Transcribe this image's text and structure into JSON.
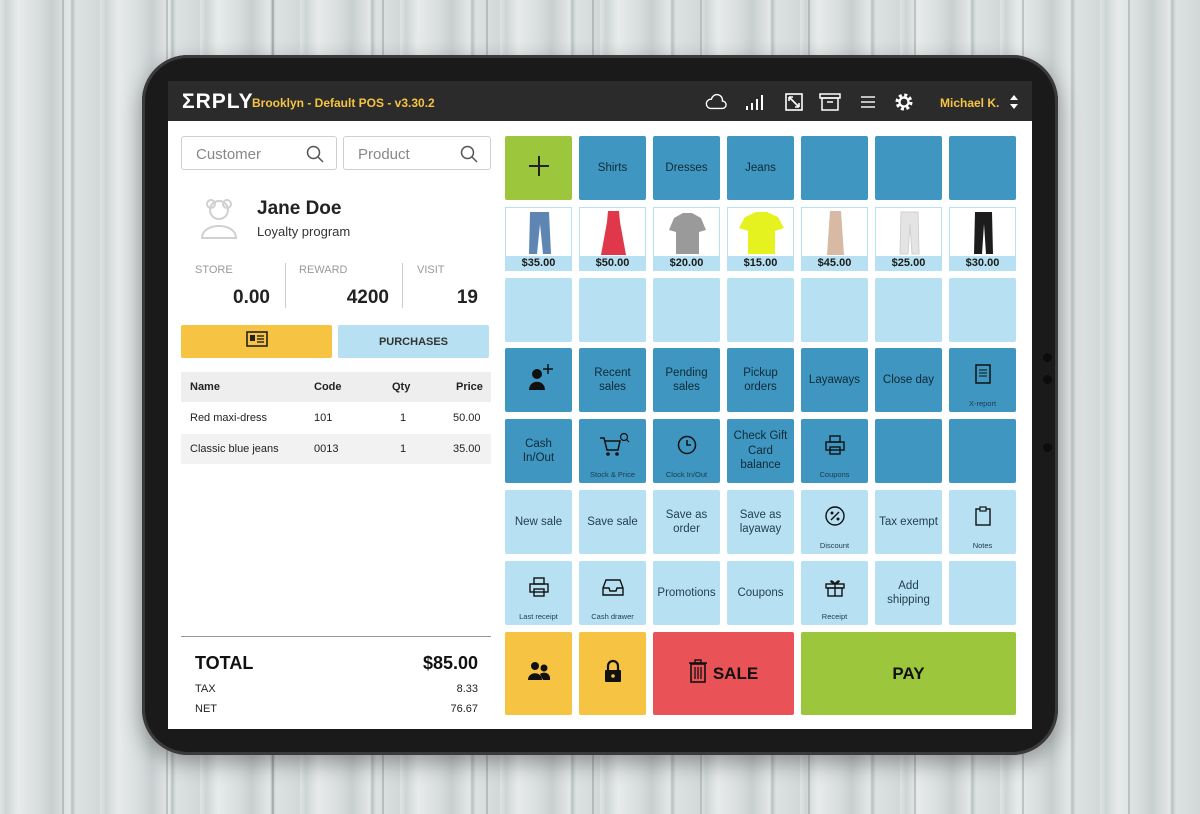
{
  "app": {
    "logo": "ΣRPLY",
    "store_label": "Brooklyn - Default POS - v3.30.2",
    "user_name": "Michael K.",
    "top_icons": [
      "cloud-icon",
      "signal-icon",
      "fullscreen-icon",
      "archive-icon",
      "list-icon",
      "gear-icon"
    ]
  },
  "search": {
    "customer_placeholder": "Customer",
    "product_placeholder": "Product"
  },
  "customer": {
    "name": "Jane Doe",
    "program": "Loyalty program",
    "stats": [
      {
        "label": "STORE",
        "value": "0.00"
      },
      {
        "label": "REWARD",
        "value": "4200"
      },
      {
        "label": "VISIT",
        "value": "19"
      }
    ],
    "purchases_label": "PURCHASES"
  },
  "cart": {
    "headers": {
      "name": "Name",
      "code": "Code",
      "qty": "Qty",
      "price": "Price"
    },
    "rows": [
      {
        "name": "Red maxi-dress",
        "code": "101",
        "qty": "1",
        "price": "50.00"
      },
      {
        "name": "Classic blue jeans",
        "code": "0013",
        "qty": "1",
        "price": "35.00"
      }
    ]
  },
  "totals": {
    "total_label": "TOTAL",
    "total_value": "$85.00",
    "tax_label": "TAX",
    "tax_value": "8.33",
    "net_label": "NET",
    "net_value": "76.67"
  },
  "grid": {
    "categories": [
      "Shirts",
      "Dresses",
      "Jeans"
    ],
    "products": [
      {
        "price": "$35.00",
        "item": "jeans",
        "color": "#5f86b3"
      },
      {
        "price": "$50.00",
        "item": "dress",
        "color": "#e0374a"
      },
      {
        "price": "$20.00",
        "item": "polo",
        "color": "#9a9a9a"
      },
      {
        "price": "$15.00",
        "item": "tshirt",
        "color": "#e6f21f"
      },
      {
        "price": "$45.00",
        "item": "skirt",
        "color": "#d8b9a4"
      },
      {
        "price": "$25.00",
        "item": "pants",
        "color": "#efefef"
      },
      {
        "price": "$30.00",
        "item": "pants",
        "color": "#1c1c1c"
      }
    ],
    "actions": {
      "recent_sales": "Recent\nsales",
      "pending_sales": "Pending\nsales",
      "pickup_orders": "Pickup\norders",
      "layaways": "Layaways",
      "close_day": "Close day",
      "x_report": "X-report",
      "cash_in_out": "Cash\nIn/Out",
      "stock_price": "Stock & Price",
      "clock_in_out": "Clock In/Out",
      "check_gift_card": "Check Gift\nCard\nbalance",
      "coupons_small": "Coupons",
      "new_sale": "New sale",
      "save_sale": "Save sale",
      "save_as_order": "Save as\norder",
      "save_as_layaway": "Save as\nlayaway",
      "discount": "Discount",
      "tax_exempt": "Tax exempt",
      "notes": "Notes",
      "last_receipt": "Last receipt",
      "cash_drawer": "Cash drawer",
      "promotions": "Promotions",
      "coupons": "Coupons",
      "receipt": "Receipt",
      "add_shipping": "Add\nshipping",
      "sale": "SALE",
      "pay": "PAY"
    }
  },
  "colors": {
    "dark_blue": "#3f96c0",
    "light_blue": "#b7e1f3",
    "green": "#9cc63b",
    "yellow": "#f6c343",
    "red": "#e95357",
    "topbar": "#2b2b2b"
  }
}
